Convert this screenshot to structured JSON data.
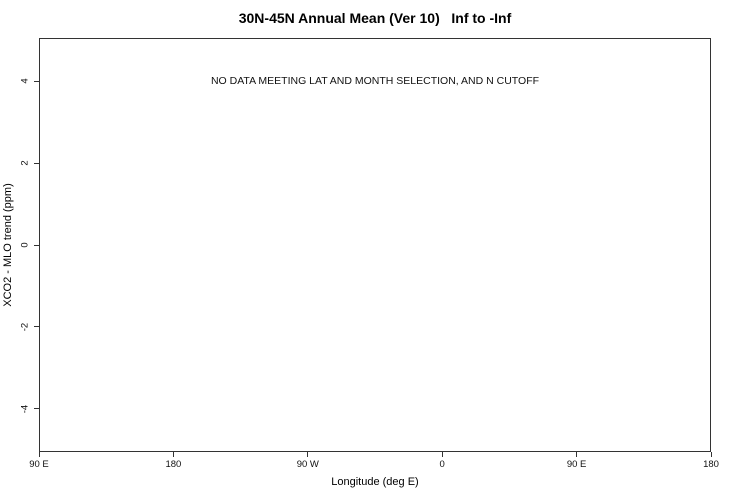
{
  "page": {
    "background_color": "#ffffff",
    "text_color": "#000000",
    "axis_color": "#333333"
  },
  "chart_data": {
    "type": "scatter",
    "title": "30N-45N Annual Mean (Ver 10)   Inf to -Inf",
    "xlabel": "Longitude (deg E)",
    "ylabel": "XCO2 - MLO trend (ppm)",
    "annotation": "NO DATA MEETING LAT AND MONTH SELECTION, AND N CUTOFF",
    "annotation_x_fraction": 0.5,
    "annotation_y_value": 4,
    "xlim": [
      90,
      540
    ],
    "ylim": [
      -5.05,
      5.05
    ],
    "grid": false,
    "legend": null,
    "x_ticks": [
      {
        "value": 90,
        "label": "90 E"
      },
      {
        "value": 180,
        "label": "180"
      },
      {
        "value": 270,
        "label": "90 W"
      },
      {
        "value": 360,
        "label": "0"
      },
      {
        "value": 450,
        "label": "90 E"
      },
      {
        "value": 540,
        "label": "180"
      }
    ],
    "y_ticks": [
      {
        "value": 4,
        "label": "4"
      },
      {
        "value": 2,
        "label": "2"
      },
      {
        "value": 0,
        "label": "0"
      },
      {
        "value": -2,
        "label": "-2"
      },
      {
        "value": -4,
        "label": "-4"
      }
    ],
    "series": []
  }
}
